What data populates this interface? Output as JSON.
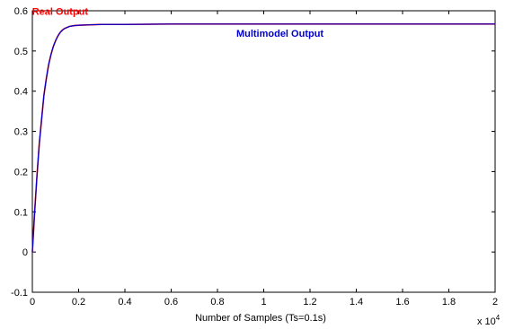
{
  "chart_data": {
    "type": "line",
    "title": "",
    "xlabel": "Number of Samples (Ts=0.1s)",
    "ylabel": "",
    "x_multiplier": "x 10",
    "x_multiplier_exp": "4",
    "xlim": [
      0,
      2
    ],
    "ylim": [
      -0.1,
      0.6
    ],
    "x_ticks": [
      "0",
      "0.2",
      "0.4",
      "0.6",
      "0.8",
      "1",
      "1.2",
      "1.4",
      "1.6",
      "1.8",
      "2"
    ],
    "y_ticks": [
      "-0.1",
      "0",
      "0.1",
      "0.2",
      "0.3",
      "0.4",
      "0.5",
      "0.6"
    ],
    "grid": false,
    "series": [
      {
        "name": "Real Output",
        "color": "#ff0000",
        "x": [
          0,
          0.005,
          0.01,
          0.02,
          0.03,
          0.04,
          0.05,
          0.06,
          0.07,
          0.08,
          0.09,
          0.1,
          0.11,
          0.12,
          0.13,
          0.14,
          0.16,
          0.18,
          0.2,
          0.25,
          0.3,
          0.4,
          0.6,
          1.0,
          1.5,
          2.0
        ],
        "values": [
          0,
          0.05,
          0.1,
          0.19,
          0.27,
          0.33,
          0.39,
          0.43,
          0.465,
          0.49,
          0.51,
          0.525,
          0.537,
          0.546,
          0.552,
          0.556,
          0.561,
          0.563,
          0.564,
          0.565,
          0.566,
          0.566,
          0.567,
          0.567,
          0.567,
          0.567
        ]
      },
      {
        "name": "Multimodel Output",
        "color": "#0000cc",
        "x": [
          0,
          0.005,
          0.01,
          0.02,
          0.03,
          0.04,
          0.05,
          0.06,
          0.07,
          0.08,
          0.09,
          0.1,
          0.11,
          0.12,
          0.13,
          0.14,
          0.16,
          0.18,
          0.2,
          0.25,
          0.3,
          0.4,
          0.6,
          1.0,
          1.5,
          2.0
        ],
        "values": [
          0,
          0.05,
          0.1,
          0.19,
          0.27,
          0.33,
          0.39,
          0.43,
          0.465,
          0.49,
          0.51,
          0.525,
          0.537,
          0.546,
          0.552,
          0.556,
          0.561,
          0.563,
          0.564,
          0.565,
          0.566,
          0.566,
          0.567,
          0.567,
          0.567,
          0.567
        ]
      }
    ],
    "annotations": [
      {
        "text": "Real Output",
        "color": "#ff0000",
        "x": 0.12,
        "y": 0.59
      },
      {
        "text": "Multimodel Output",
        "color": "#0000cc",
        "x": 1.07,
        "y": 0.535
      }
    ]
  }
}
